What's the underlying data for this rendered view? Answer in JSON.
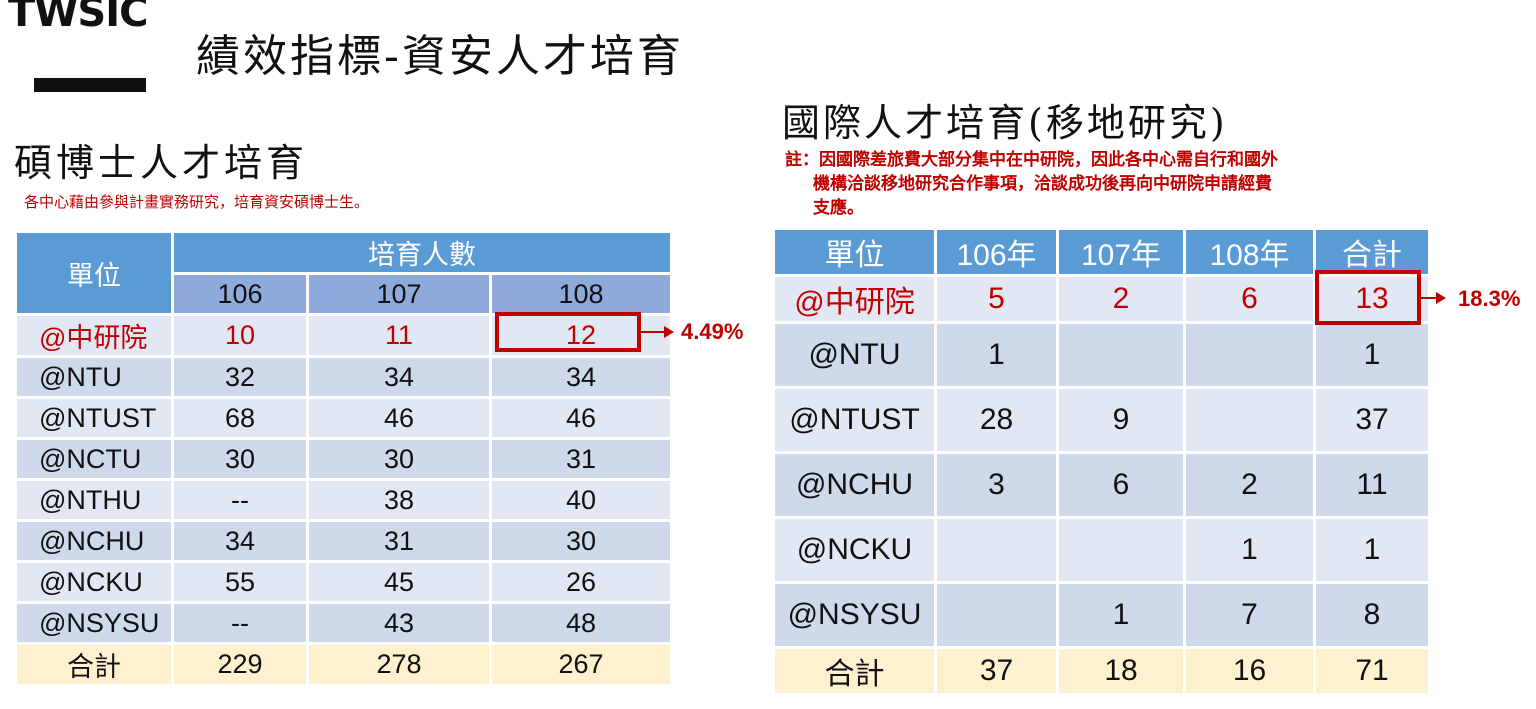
{
  "logo": "TWSIC",
  "main_title": "績效指標-資安人才培育",
  "left": {
    "title": "碩博士人才培育",
    "note": "各中心藉由參與計畫實務研究，培育資安碩博士生。",
    "header_unit": "單位",
    "header_group": "培育人數",
    "years": [
      "106",
      "107",
      "108"
    ],
    "rows": [
      {
        "unit": "@中研院",
        "v": [
          "10",
          "11",
          "12"
        ]
      },
      {
        "unit": "@NTU",
        "v": [
          "32",
          "34",
          "34"
        ]
      },
      {
        "unit": "@NTUST",
        "v": [
          "68",
          "46",
          "46"
        ]
      },
      {
        "unit": "@NCTU",
        "v": [
          "30",
          "30",
          "31"
        ]
      },
      {
        "unit": "@NTHU",
        "v": [
          "--",
          "38",
          "40"
        ]
      },
      {
        "unit": "@NCHU",
        "v": [
          "34",
          "31",
          "30"
        ]
      },
      {
        "unit": "@NCKU",
        "v": [
          "55",
          "45",
          "26"
        ]
      },
      {
        "unit": "@NSYSU",
        "v": [
          "--",
          "43",
          "48"
        ]
      }
    ],
    "total": {
      "unit": "合計",
      "v": [
        "229",
        "278",
        "267"
      ]
    },
    "callout": "4.49%"
  },
  "right": {
    "title": "國際人才培育(移地研究)",
    "note_line1": "註：因國際差旅費大部分集中在中研院，因此各中心需自行和國外",
    "note_line2": "機構洽談移地研究合作事項，洽談成功後再向中研院申請經費",
    "note_line3": "支應。",
    "headers": [
      "單位",
      "106年",
      "107年",
      "108年",
      "合計"
    ],
    "rows": [
      {
        "unit": "@中研院",
        "v": [
          "5",
          "2",
          "6",
          "13"
        ]
      },
      {
        "unit": "@NTU",
        "v": [
          "1",
          "",
          "",
          "1"
        ]
      },
      {
        "unit": "@NTUST",
        "v": [
          "28",
          "9",
          "",
          "37"
        ]
      },
      {
        "unit": "@NCHU",
        "v": [
          "3",
          "6",
          "2",
          "11"
        ]
      },
      {
        "unit": "@NCKU",
        "v": [
          "",
          "",
          "1",
          "1"
        ]
      },
      {
        "unit": "@NSYSU",
        "v": [
          "",
          "1",
          "7",
          "8"
        ]
      }
    ],
    "total": {
      "unit": "合計",
      "v": [
        "37",
        "18",
        "16",
        "71"
      ]
    },
    "callout": "18.3%"
  },
  "colors": {
    "header": "#5b9bd5",
    "subheader": "#8eaadb",
    "row_light": "#e2e8f3",
    "row_dark": "#cfd9ec",
    "total": "#fdf1cf",
    "highlight": "#c00000"
  }
}
